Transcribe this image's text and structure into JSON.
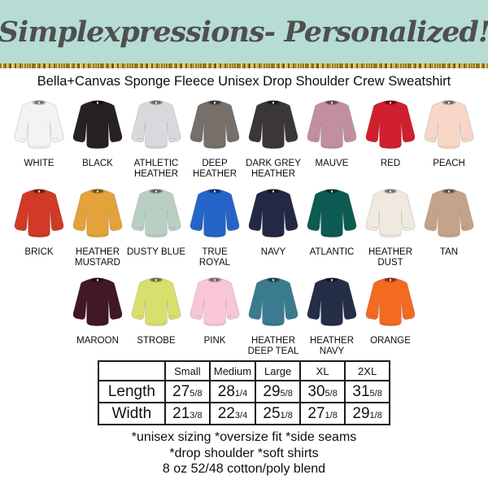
{
  "banner": {
    "brand": "Simplexpressions- Personalized!",
    "background_color": "#b7dcd3",
    "text_color": "#4f4f50",
    "glitter_color": "#d4b547"
  },
  "product": {
    "title": "Bella+Canvas Sponge Fleece Unisex Drop Shoulder Crew Sweatshirt"
  },
  "color_grid": {
    "rows": [
      [
        {
          "name": "WHITE",
          "hex": "#f4f3f1"
        },
        {
          "name": "BLACK",
          "hex": "#272124"
        },
        {
          "name": "ATHLETIC HEATHER",
          "hex": "#d7d9dd"
        },
        {
          "name": "DEEP HEATHER",
          "hex": "#766f6a"
        },
        {
          "name": "DARK GREY HEATHER",
          "hex": "#3b3739"
        },
        {
          "name": "MAUVE",
          "hex": "#c18f9d"
        },
        {
          "name": "RED",
          "hex": "#d01f2e"
        },
        {
          "name": "PEACH",
          "hex": "#f7d6c8"
        }
      ],
      [
        {
          "name": "BRICK",
          "hex": "#d03a26"
        },
        {
          "name": "HEATHER MUSTARD",
          "hex": "#e3a33a"
        },
        {
          "name": "DUSTY BLUE",
          "hex": "#b9cfc3"
        },
        {
          "name": "TRUE ROYAL",
          "hex": "#2565c7"
        },
        {
          "name": "NAVY",
          "hex": "#232944"
        },
        {
          "name": "ATLANTIC",
          "hex": "#0e5b54"
        },
        {
          "name": "HEATHER DUST",
          "hex": "#efe9df"
        },
        {
          "name": "TAN",
          "hex": "#c5a388"
        }
      ],
      [
        {
          "name": "MAROON",
          "hex": "#411824"
        },
        {
          "name": "STROBE",
          "hex": "#d9df6d"
        },
        {
          "name": "PINK",
          "hex": "#f8c6d5"
        },
        {
          "name": "HEATHER DEEP TEAL",
          "hex": "#3a7b8f"
        },
        {
          "name": "HEATHER NAVY",
          "hex": "#252e47"
        },
        {
          "name": "ORANGE",
          "hex": "#f36a23"
        }
      ]
    ]
  },
  "size_chart": {
    "columns": [
      "",
      "Small",
      "Medium",
      "Large",
      "XL",
      "2XL"
    ],
    "rows": [
      {
        "label": "Length",
        "values": [
          [
            "27",
            "5/8"
          ],
          [
            "28",
            "1/4"
          ],
          [
            "29",
            "5/8"
          ],
          [
            "30",
            "5/8"
          ],
          [
            "31",
            "5/8"
          ]
        ]
      },
      {
        "label": "Width",
        "values": [
          [
            "21",
            "3/8"
          ],
          [
            "22",
            "3/4"
          ],
          [
            "25",
            "1/8"
          ],
          [
            "27",
            "1/8"
          ],
          [
            "29",
            "1/8"
          ]
        ]
      }
    ]
  },
  "footer": {
    "lines": [
      "*unisex sizing *oversize fit *side seams",
      "*drop shoulder *soft shirts",
      "8 oz 52/48 cotton/poly blend"
    ]
  }
}
